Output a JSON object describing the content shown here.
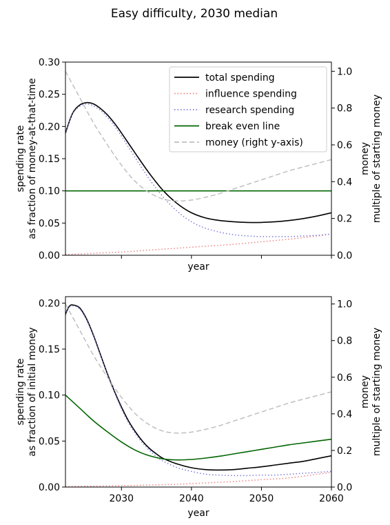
{
  "figure": {
    "title": "Easy difficulty, 2030 median"
  },
  "chart_data": [
    {
      "type": "line",
      "panel": "top",
      "xlabel": "year",
      "ylabel_lines": [
        "spending rate",
        "as fraction of money-at-that-time"
      ],
      "y2label_lines": [
        "money",
        "multiple of starting money"
      ],
      "xlim": [
        2022,
        2060
      ],
      "ylim": [
        0,
        0.3
      ],
      "y2lim": [
        0,
        1.05
      ],
      "x_ticks": [
        2030,
        2040,
        2050,
        2060
      ],
      "show_x_tick_labels": false,
      "y_ticks": [
        0.0,
        0.05,
        0.1,
        0.15,
        0.2,
        0.25,
        0.3
      ],
      "y_tick_labels": [
        "0.00",
        "0.05",
        "0.10",
        "0.15",
        "0.20",
        "0.25",
        "0.30"
      ],
      "y2_ticks": [
        0.0,
        0.2,
        0.4,
        0.6,
        0.8,
        1.0
      ],
      "y2_tick_labels": [
        "0.0",
        "0.2",
        "0.4",
        "0.6",
        "0.8",
        "1.0"
      ],
      "grid": false,
      "legend_position": "upper-right",
      "legend": [
        {
          "name": "total spending",
          "color": "#000000",
          "dash": "solid"
        },
        {
          "name": "influence spending",
          "color": "#f08080",
          "dash": "dotted"
        },
        {
          "name": "research spending",
          "color": "#7b7bdc",
          "dash": "dotted"
        },
        {
          "name": "break even line",
          "color": "#006400",
          "dash": "solid"
        },
        {
          "name": "money (right y-axis)",
          "color": "#bfbfbf",
          "dash": "dashed"
        }
      ],
      "series": [
        {
          "key": "total",
          "axis": "left",
          "color": "#000000",
          "dash": "solid",
          "x": [
            2022,
            2023,
            2024,
            2025,
            2026,
            2027,
            2028,
            2029,
            2030,
            2032,
            2034,
            2036,
            2038,
            2040,
            2042,
            2044,
            2046,
            2048,
            2050,
            2052,
            2054,
            2056,
            2058,
            2060
          ],
          "y": [
            0.19,
            0.22,
            0.233,
            0.237,
            0.235,
            0.228,
            0.218,
            0.205,
            0.19,
            0.158,
            0.127,
            0.1,
            0.08,
            0.066,
            0.058,
            0.054,
            0.052,
            0.051,
            0.051,
            0.052,
            0.054,
            0.057,
            0.061,
            0.066
          ]
        },
        {
          "key": "influence",
          "axis": "left",
          "color": "#f08080",
          "dash": "dotted",
          "x": [
            2022,
            2026,
            2030,
            2034,
            2038,
            2042,
            2046,
            2050,
            2054,
            2058,
            2060
          ],
          "y": [
            0.001,
            0.003,
            0.005,
            0.008,
            0.011,
            0.014,
            0.017,
            0.021,
            0.025,
            0.03,
            0.033
          ]
        },
        {
          "key": "research",
          "axis": "left",
          "color": "#7b7bdc",
          "dash": "dotted",
          "x": [
            2022,
            2023,
            2024,
            2025,
            2026,
            2027,
            2028,
            2029,
            2030,
            2032,
            2034,
            2036,
            2038,
            2040,
            2042,
            2044,
            2046,
            2048,
            2050,
            2052,
            2054,
            2056,
            2058,
            2060
          ],
          "y": [
            0.189,
            0.219,
            0.231,
            0.235,
            0.232,
            0.225,
            0.214,
            0.201,
            0.185,
            0.151,
            0.118,
            0.09,
            0.068,
            0.052,
            0.042,
            0.036,
            0.032,
            0.03,
            0.029,
            0.029,
            0.029,
            0.03,
            0.031,
            0.033
          ]
        },
        {
          "key": "breakeven",
          "axis": "left",
          "color": "#006400",
          "dash": "solid",
          "x": [
            2022,
            2060
          ],
          "y": [
            0.1,
            0.1
          ]
        },
        {
          "key": "money",
          "axis": "right",
          "color": "#bfbfbf",
          "dash": "dashed",
          "x": [
            2022,
            2024,
            2026,
            2028,
            2030,
            2032,
            2034,
            2036,
            2038,
            2040,
            2042,
            2044,
            2046,
            2048,
            2050,
            2052,
            2054,
            2056,
            2058,
            2060
          ],
          "y": [
            1.0,
            0.86,
            0.72,
            0.6,
            0.49,
            0.4,
            0.34,
            0.305,
            0.295,
            0.3,
            0.315,
            0.335,
            0.36,
            0.385,
            0.41,
            0.435,
            0.46,
            0.48,
            0.5,
            0.52
          ]
        }
      ]
    },
    {
      "type": "line",
      "panel": "bottom",
      "xlabel": "year",
      "ylabel_lines": [
        "spending rate",
        "as fraction of initial money"
      ],
      "y2label_lines": [
        "money",
        "multiple of starting money"
      ],
      "xlim": [
        2022,
        2060
      ],
      "ylim": [
        0,
        0.207
      ],
      "y2lim": [
        0,
        1.04
      ],
      "x_ticks": [
        2030,
        2040,
        2050,
        2060
      ],
      "x_tick_labels": [
        "2030",
        "2040",
        "2050",
        "2060"
      ],
      "show_x_tick_labels": true,
      "y_ticks": [
        0.0,
        0.05,
        0.1,
        0.15,
        0.2
      ],
      "y_tick_labels": [
        "0.00",
        "0.05",
        "0.10",
        "0.15",
        "0.20"
      ],
      "y2_ticks": [
        0.0,
        0.2,
        0.4,
        0.6,
        0.8,
        1.0
      ],
      "y2_tick_labels": [
        "0.0",
        "0.2",
        "0.4",
        "0.6",
        "0.8",
        "1.0"
      ],
      "grid": false,
      "series": [
        {
          "key": "total",
          "axis": "left",
          "color": "#000000",
          "dash": "solid",
          "x": [
            2022,
            2022.5,
            2023,
            2024,
            2025,
            2026,
            2027,
            2028,
            2029,
            2030,
            2031,
            2032,
            2033,
            2034,
            2035,
            2036,
            2038,
            2040,
            2042,
            2044,
            2046,
            2048,
            2050,
            2052,
            2054,
            2056,
            2058,
            2060
          ],
          "y": [
            0.188,
            0.196,
            0.198,
            0.195,
            0.183,
            0.165,
            0.144,
            0.123,
            0.104,
            0.087,
            0.072,
            0.06,
            0.05,
            0.042,
            0.036,
            0.031,
            0.025,
            0.021,
            0.019,
            0.0185,
            0.019,
            0.0205,
            0.022,
            0.024,
            0.026,
            0.028,
            0.031,
            0.034
          ]
        },
        {
          "key": "influence",
          "axis": "left",
          "color": "#f08080",
          "dash": "dotted",
          "x": [
            2022,
            2026,
            2030,
            2034,
            2038,
            2042,
            2046,
            2050,
            2054,
            2058,
            2060
          ],
          "y": [
            0.0005,
            0.001,
            0.0015,
            0.0022,
            0.003,
            0.0045,
            0.006,
            0.008,
            0.01,
            0.014,
            0.016
          ]
        },
        {
          "key": "research",
          "axis": "left",
          "color": "#7b7bdc",
          "dash": "dotted",
          "x": [
            2022,
            2022.5,
            2023,
            2024,
            2025,
            2026,
            2027,
            2028,
            2029,
            2030,
            2031,
            2032,
            2033,
            2034,
            2035,
            2036,
            2038,
            2040,
            2042,
            2044,
            2046,
            2048,
            2050,
            2052,
            2054,
            2056,
            2058,
            2060
          ],
          "y": [
            0.187,
            0.195,
            0.197,
            0.194,
            0.182,
            0.164,
            0.143,
            0.122,
            0.103,
            0.085,
            0.07,
            0.058,
            0.048,
            0.04,
            0.033,
            0.028,
            0.021,
            0.017,
            0.014,
            0.013,
            0.0125,
            0.0125,
            0.013,
            0.013,
            0.014,
            0.015,
            0.016,
            0.017
          ]
        },
        {
          "key": "breakeven",
          "axis": "left",
          "color": "#006400",
          "dash": "solid",
          "x": [
            2022,
            2024,
            2026,
            2028,
            2030,
            2032,
            2034,
            2036,
            2038,
            2040,
            2042,
            2044,
            2046,
            2048,
            2050,
            2052,
            2054,
            2056,
            2058,
            2060
          ],
          "y": [
            0.1,
            0.086,
            0.072,
            0.06,
            0.049,
            0.04,
            0.034,
            0.0305,
            0.0295,
            0.03,
            0.0315,
            0.0335,
            0.036,
            0.0385,
            0.041,
            0.0435,
            0.046,
            0.048,
            0.05,
            0.052
          ]
        },
        {
          "key": "money",
          "axis": "right",
          "color": "#bfbfbf",
          "dash": "dashed",
          "x": [
            2022,
            2024,
            2026,
            2028,
            2030,
            2032,
            2034,
            2036,
            2038,
            2040,
            2042,
            2044,
            2046,
            2048,
            2050,
            2052,
            2054,
            2056,
            2058,
            2060
          ],
          "y": [
            1.0,
            0.86,
            0.72,
            0.6,
            0.49,
            0.4,
            0.34,
            0.305,
            0.295,
            0.3,
            0.315,
            0.335,
            0.36,
            0.385,
            0.41,
            0.435,
            0.46,
            0.48,
            0.5,
            0.52
          ]
        }
      ]
    }
  ]
}
